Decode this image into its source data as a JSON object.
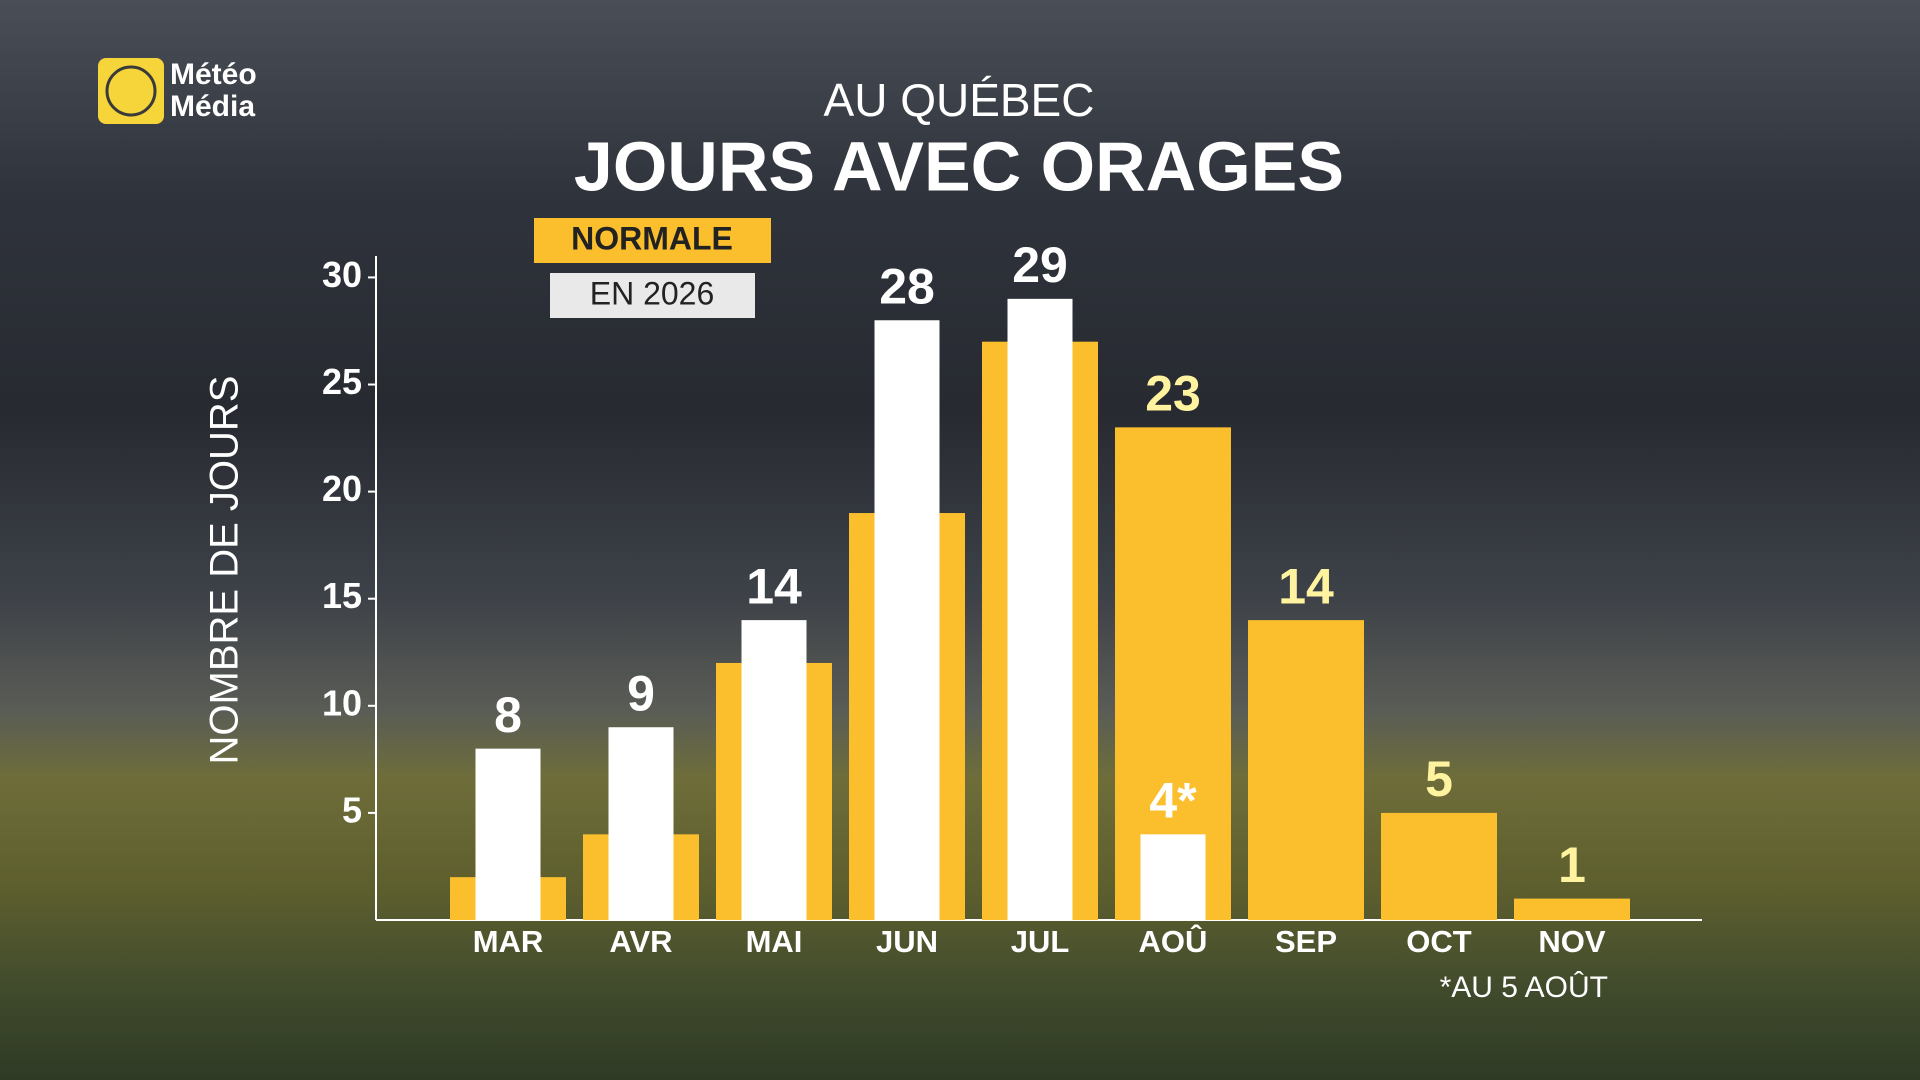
{
  "logo": {
    "line1": "Météo",
    "line2": "Média"
  },
  "chart_data": {
    "type": "bar",
    "subtitle": "AU QUÉBEC",
    "title": "JOURS AVEC ORAGES",
    "y_label": "NOMBRE DE JOURS",
    "categories": [
      "MAR",
      "AVR",
      "MAI",
      "JUN",
      "JUL",
      "AOÛ",
      "SEP",
      "OCT",
      "NOV"
    ],
    "series": [
      {
        "name": "NORMALE",
        "color": "#fbbf2d",
        "label_color": "#fff3a0",
        "values": [
          2,
          4,
          12,
          19,
          27,
          23,
          14,
          5,
          1
        ],
        "value_labels": [
          null,
          null,
          null,
          null,
          null,
          "23",
          "14",
          "5",
          "1"
        ]
      },
      {
        "name": "EN 2026",
        "color": "#ffffff",
        "label_color": "#ffffff",
        "values": [
          8,
          9,
          14,
          28,
          29,
          4,
          null,
          null,
          null
        ],
        "value_labels": [
          "8",
          "9",
          "14",
          "28",
          "29",
          "4*",
          null,
          null,
          null
        ]
      }
    ],
    "ylim": [
      0,
      31
    ],
    "yticks": [
      5,
      10,
      15,
      20,
      25,
      30
    ],
    "footnote": "*AU 5 AOÛT"
  }
}
